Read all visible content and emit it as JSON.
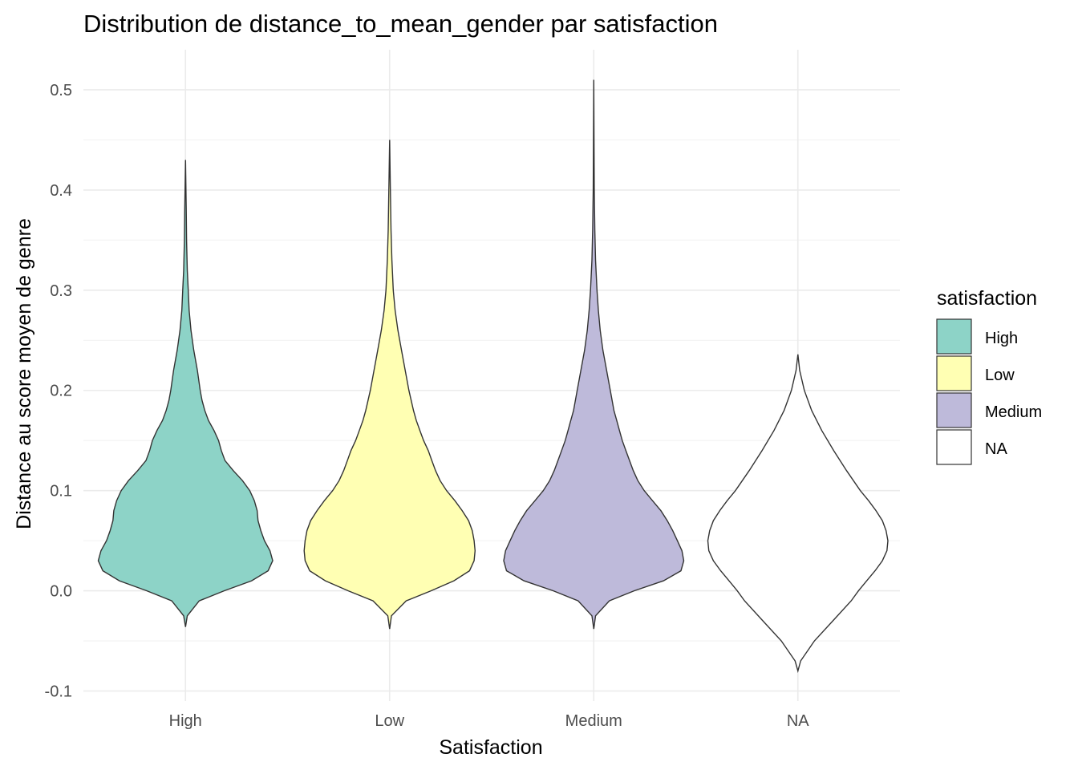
{
  "chart_data": {
    "type": "violin",
    "title": "Distribution de distance_to_mean_gender par satisfaction",
    "xlabel": "Satisfaction",
    "ylabel": "Distance au score moyen de genre",
    "ylim": [
      -0.11,
      0.54
    ],
    "yticks": [
      -0.1,
      0.0,
      0.1,
      0.2,
      0.3,
      0.4,
      0.5
    ],
    "ytick_labels": [
      "-0.1",
      "0.0",
      "0.1",
      "0.2",
      "0.3",
      "0.4",
      "0.5"
    ],
    "categories": [
      "High",
      "Low",
      "Medium",
      "NA"
    ],
    "grid": true,
    "legend": {
      "title": "satisfaction",
      "position": "right",
      "entries": [
        {
          "label": "High",
          "color": "#8dd3c7"
        },
        {
          "label": "Low",
          "color": "#ffffb3"
        },
        {
          "label": "Medium",
          "color": "#bebada"
        },
        {
          "label": "NA",
          "color": "#ffffff"
        }
      ]
    },
    "series": [
      {
        "category": "High",
        "fill": "#8dd3c7",
        "y_min": -0.036,
        "y_max": 0.43,
        "density_profile": [
          [
            -0.036,
            0.0
          ],
          [
            -0.025,
            0.02
          ],
          [
            -0.01,
            0.15
          ],
          [
            0.0,
            0.42
          ],
          [
            0.01,
            0.72
          ],
          [
            0.02,
            0.9
          ],
          [
            0.03,
            0.95
          ],
          [
            0.04,
            0.92
          ],
          [
            0.05,
            0.86
          ],
          [
            0.06,
            0.82
          ],
          [
            0.07,
            0.79
          ],
          [
            0.08,
            0.78
          ],
          [
            0.09,
            0.75
          ],
          [
            0.1,
            0.7
          ],
          [
            0.11,
            0.62
          ],
          [
            0.12,
            0.52
          ],
          [
            0.13,
            0.43
          ],
          [
            0.14,
            0.39
          ],
          [
            0.15,
            0.36
          ],
          [
            0.16,
            0.31
          ],
          [
            0.17,
            0.25
          ],
          [
            0.18,
            0.21
          ],
          [
            0.19,
            0.18
          ],
          [
            0.2,
            0.16
          ],
          [
            0.22,
            0.13
          ],
          [
            0.24,
            0.09
          ],
          [
            0.26,
            0.06
          ],
          [
            0.28,
            0.04
          ],
          [
            0.3,
            0.03
          ],
          [
            0.32,
            0.02
          ],
          [
            0.35,
            0.012
          ],
          [
            0.38,
            0.008
          ],
          [
            0.43,
            0.0
          ]
        ]
      },
      {
        "category": "Low",
        "fill": "#ffffb3",
        "y_min": -0.038,
        "y_max": 0.45,
        "density_profile": [
          [
            -0.038,
            0.0
          ],
          [
            -0.025,
            0.02
          ],
          [
            -0.01,
            0.18
          ],
          [
            0.0,
            0.45
          ],
          [
            0.01,
            0.7
          ],
          [
            0.02,
            0.87
          ],
          [
            0.03,
            0.92
          ],
          [
            0.04,
            0.93
          ],
          [
            0.05,
            0.92
          ],
          [
            0.06,
            0.9
          ],
          [
            0.07,
            0.86
          ],
          [
            0.08,
            0.79
          ],
          [
            0.09,
            0.71
          ],
          [
            0.1,
            0.62
          ],
          [
            0.11,
            0.55
          ],
          [
            0.12,
            0.5
          ],
          [
            0.13,
            0.46
          ],
          [
            0.14,
            0.42
          ],
          [
            0.15,
            0.37
          ],
          [
            0.16,
            0.33
          ],
          [
            0.17,
            0.29
          ],
          [
            0.18,
            0.26
          ],
          [
            0.2,
            0.21
          ],
          [
            0.22,
            0.17
          ],
          [
            0.24,
            0.13
          ],
          [
            0.26,
            0.09
          ],
          [
            0.28,
            0.06
          ],
          [
            0.3,
            0.04
          ],
          [
            0.33,
            0.025
          ],
          [
            0.36,
            0.015
          ],
          [
            0.4,
            0.008
          ],
          [
            0.45,
            0.0
          ]
        ]
      },
      {
        "category": "Medium",
        "fill": "#bebada",
        "y_min": -0.038,
        "y_max": 0.51,
        "density_profile": [
          [
            -0.038,
            0.0
          ],
          [
            -0.025,
            0.02
          ],
          [
            -0.01,
            0.17
          ],
          [
            0.0,
            0.44
          ],
          [
            0.01,
            0.76
          ],
          [
            0.02,
            0.95
          ],
          [
            0.03,
            0.98
          ],
          [
            0.04,
            0.96
          ],
          [
            0.05,
            0.91
          ],
          [
            0.06,
            0.86
          ],
          [
            0.07,
            0.8
          ],
          [
            0.08,
            0.73
          ],
          [
            0.09,
            0.64
          ],
          [
            0.1,
            0.55
          ],
          [
            0.11,
            0.48
          ],
          [
            0.12,
            0.43
          ],
          [
            0.13,
            0.39
          ],
          [
            0.14,
            0.35
          ],
          [
            0.15,
            0.31
          ],
          [
            0.16,
            0.28
          ],
          [
            0.17,
            0.25
          ],
          [
            0.18,
            0.22
          ],
          [
            0.2,
            0.18
          ],
          [
            0.22,
            0.14
          ],
          [
            0.24,
            0.1
          ],
          [
            0.26,
            0.07
          ],
          [
            0.28,
            0.05
          ],
          [
            0.3,
            0.035
          ],
          [
            0.33,
            0.02
          ],
          [
            0.36,
            0.012
          ],
          [
            0.4,
            0.006
          ],
          [
            0.45,
            0.003
          ],
          [
            0.51,
            0.0
          ]
        ]
      },
      {
        "category": "NA",
        "fill": "#ffffff",
        "y_min": -0.08,
        "y_max": 0.236,
        "density_profile": [
          [
            -0.08,
            0.0
          ],
          [
            -0.07,
            0.03
          ],
          [
            -0.05,
            0.18
          ],
          [
            -0.03,
            0.38
          ],
          [
            -0.01,
            0.58
          ],
          [
            0.0,
            0.66
          ],
          [
            0.01,
            0.75
          ],
          [
            0.02,
            0.84
          ],
          [
            0.03,
            0.92
          ],
          [
            0.04,
            0.97
          ],
          [
            0.05,
            0.98
          ],
          [
            0.06,
            0.96
          ],
          [
            0.07,
            0.92
          ],
          [
            0.08,
            0.85
          ],
          [
            0.09,
            0.77
          ],
          [
            0.1,
            0.68
          ],
          [
            0.12,
            0.53
          ],
          [
            0.14,
            0.39
          ],
          [
            0.16,
            0.26
          ],
          [
            0.18,
            0.15
          ],
          [
            0.2,
            0.07
          ],
          [
            0.22,
            0.02
          ],
          [
            0.236,
            0.0
          ]
        ]
      }
    ]
  }
}
